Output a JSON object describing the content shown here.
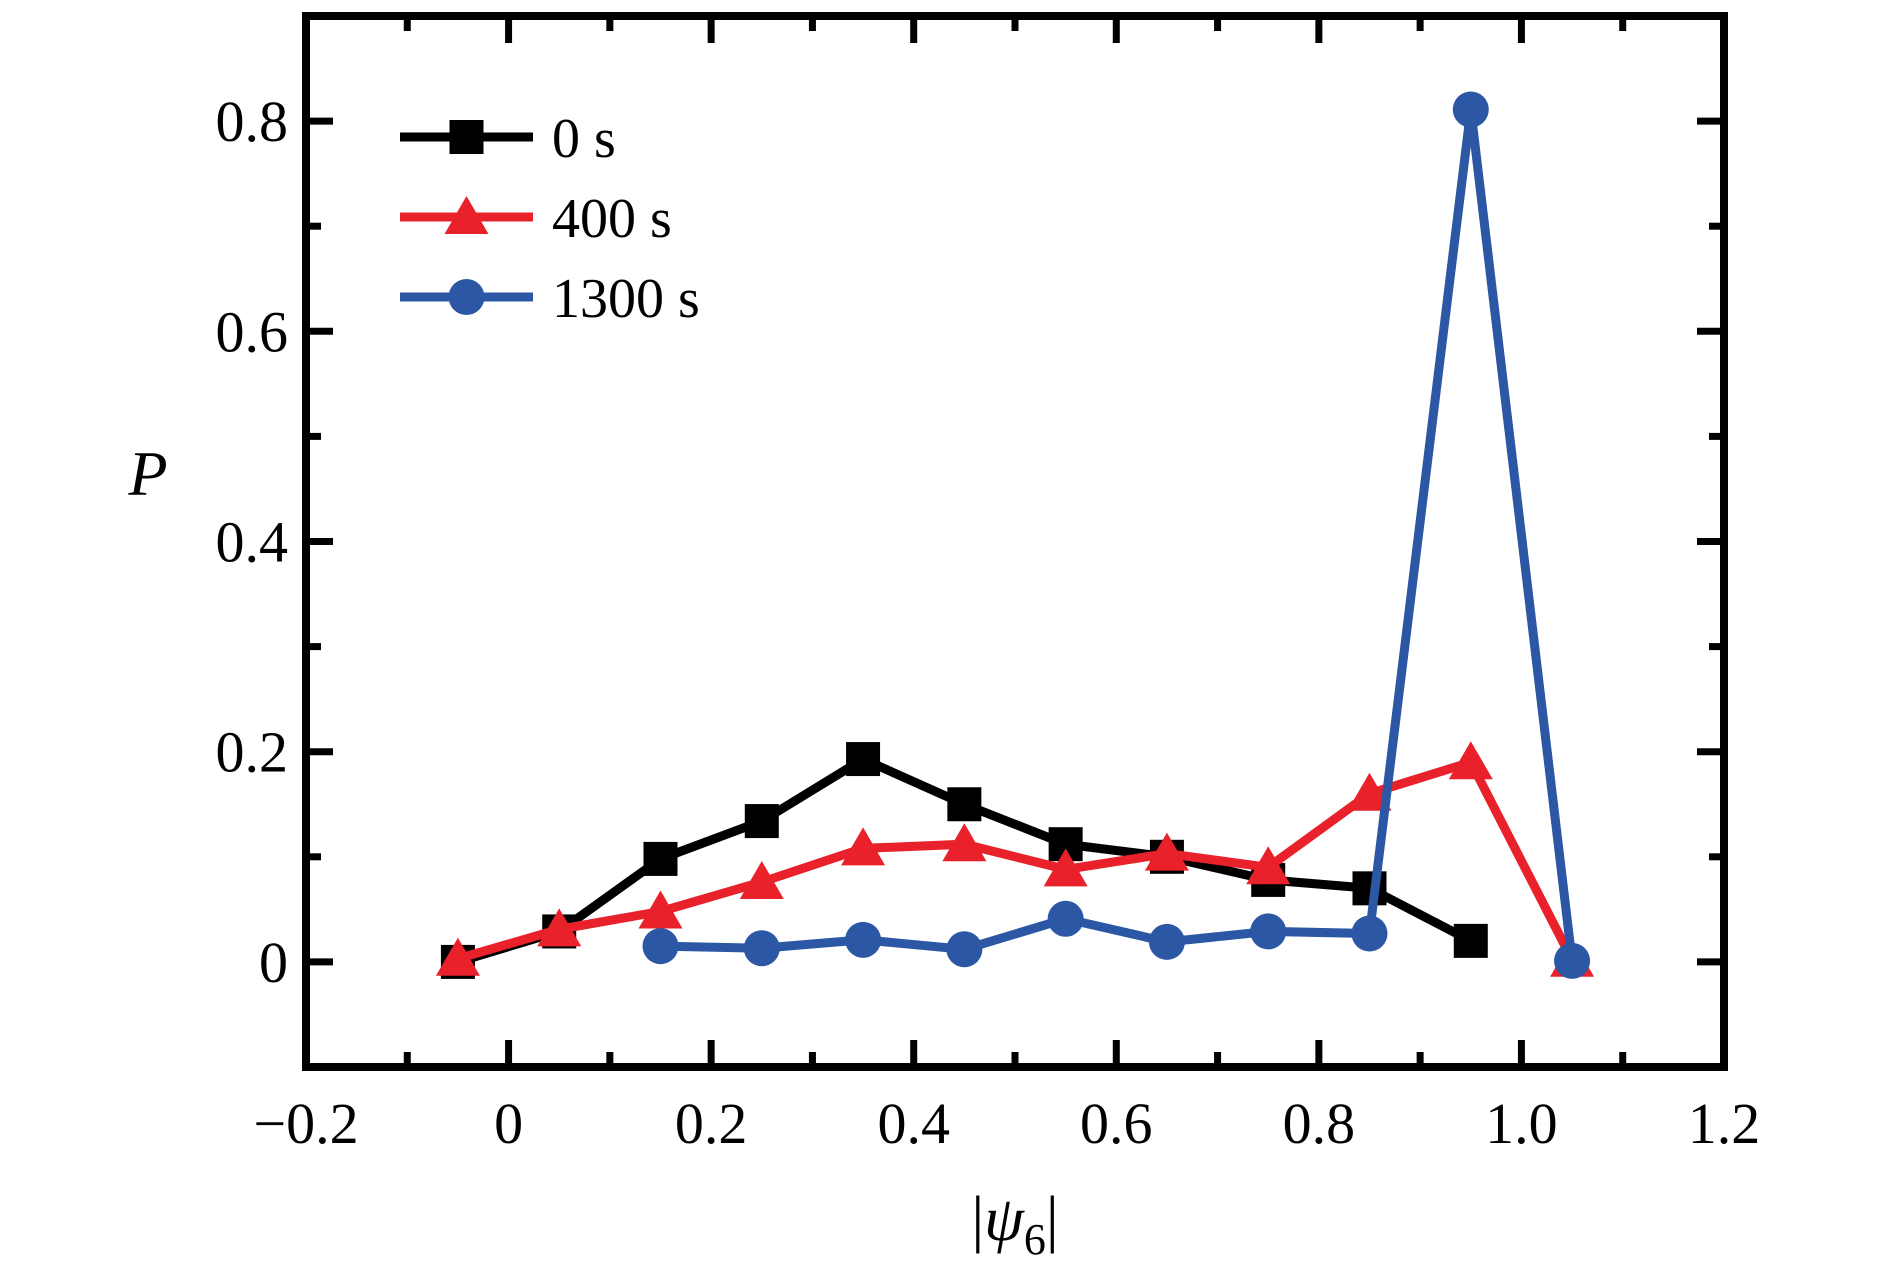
{
  "figure": {
    "background": "#ffffff",
    "frame_color": "#000000"
  },
  "chart_data": {
    "type": "line",
    "title": "",
    "xlabel": {
      "prefix": "|",
      "symbol": "ψ",
      "sub": "6",
      "suffix": "|"
    },
    "ylabel": "P",
    "xlim": [
      -0.2,
      1.2
    ],
    "ylim": [
      -0.1,
      0.9
    ],
    "grid": false,
    "legend_position": "upper-left-inside",
    "x_major_ticks": [
      {
        "v": -0.2,
        "label": "−0.2"
      },
      {
        "v": 0.0,
        "label": "0"
      },
      {
        "v": 0.2,
        "label": "0.2"
      },
      {
        "v": 0.4,
        "label": "0.4"
      },
      {
        "v": 0.6,
        "label": "0.6"
      },
      {
        "v": 0.8,
        "label": "0.8"
      },
      {
        "v": 1.0,
        "label": "1.0"
      },
      {
        "v": 1.2,
        "label": "1.2"
      }
    ],
    "x_minor_ticks": [
      -0.1,
      0.1,
      0.3,
      0.5,
      0.7,
      0.9,
      1.1
    ],
    "y_major_ticks": [
      {
        "v": 0.0,
        "label": "0"
      },
      {
        "v": 0.2,
        "label": "0.2"
      },
      {
        "v": 0.4,
        "label": "0.4"
      },
      {
        "v": 0.6,
        "label": "0.6"
      },
      {
        "v": 0.8,
        "label": "0.8"
      }
    ],
    "y_minor_ticks": [
      0.1,
      0.3,
      0.5,
      0.7
    ],
    "series": [
      {
        "name": "0 s",
        "legend_label": " 0 s",
        "color": "#000000",
        "marker": "square",
        "x": [
          -0.05,
          0.05,
          0.15,
          0.25,
          0.35,
          0.45,
          0.55,
          0.65,
          0.75,
          0.85,
          0.95
        ],
        "y": [
          0.0,
          0.029,
          0.098,
          0.134,
          0.193,
          0.15,
          0.112,
          0.1,
          0.078,
          0.07,
          0.02
        ]
      },
      {
        "name": "400 s",
        "legend_label": "400 s",
        "color": "#e8212a",
        "marker": "triangle",
        "x": [
          -0.05,
          0.05,
          0.15,
          0.25,
          0.35,
          0.45,
          0.55,
          0.65,
          0.75,
          0.85,
          0.95,
          1.05
        ],
        "y": [
          0.003,
          0.031,
          0.048,
          0.076,
          0.108,
          0.112,
          0.088,
          0.103,
          0.09,
          0.16,
          0.19,
          0.002
        ]
      },
      {
        "name": "1300 s",
        "legend_label": "1300 s",
        "color": "#2b57a5",
        "marker": "circle",
        "x": [
          0.15,
          0.25,
          0.35,
          0.45,
          0.55,
          0.65,
          0.75,
          0.85,
          0.95,
          1.05
        ],
        "y": [
          0.015,
          0.013,
          0.021,
          0.012,
          0.041,
          0.019,
          0.029,
          0.027,
          0.811,
          0.001
        ]
      }
    ]
  }
}
